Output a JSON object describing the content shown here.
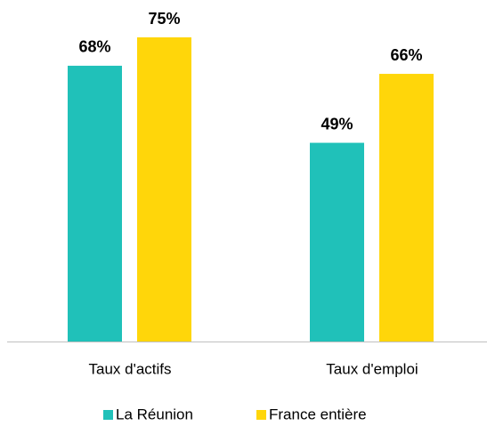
{
  "chart_data": {
    "type": "bar",
    "categories": [
      "Taux d'actifs",
      "Taux d'emploi"
    ],
    "series": [
      {
        "name": "La Réunion",
        "color": "#20c1b9",
        "values": [
          68,
          49
        ],
        "value_labels": [
          "68%",
          "49%"
        ]
      },
      {
        "name": "France entière",
        "color": "#ffd60a",
        "values": [
          75,
          66
        ],
        "value_labels": [
          "75%",
          "66%"
        ]
      }
    ]
  }
}
